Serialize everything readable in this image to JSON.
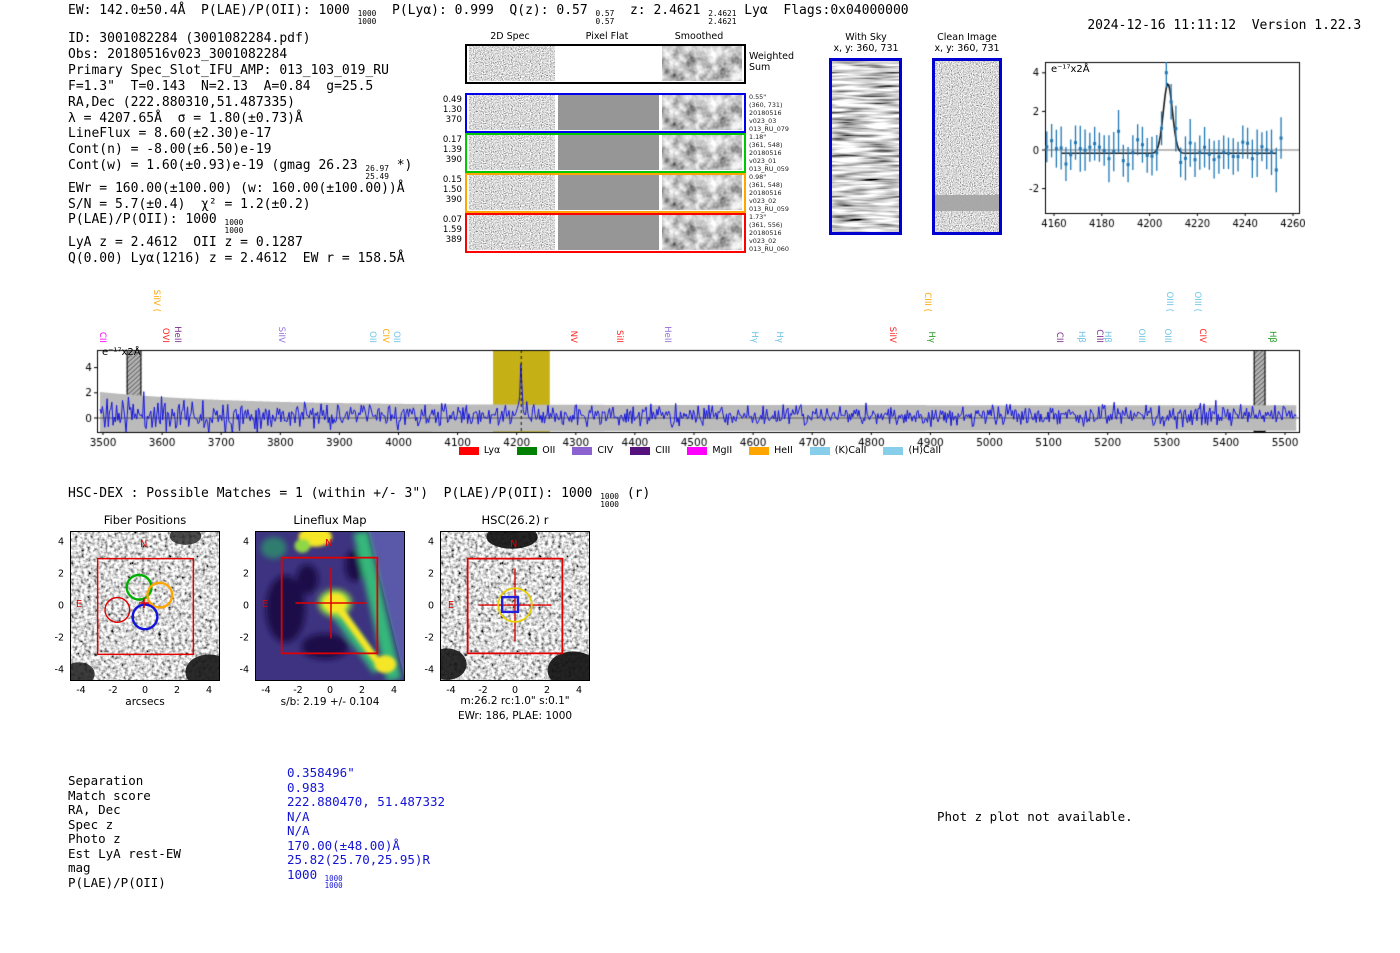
{
  "header": {
    "segments": [
      {
        "t": "EW: 142.0±50.4Å  P(LAE)/P(OII): 1000 "
      },
      {
        "frac": [
          "1000",
          "1000"
        ]
      },
      {
        "t": "  P(Lyα): 0.999  Q(z): 0.57 "
      },
      {
        "frac": [
          "0.57",
          "0.57"
        ]
      },
      {
        "t": "  z: 2.4621 "
      },
      {
        "frac": [
          "2.4621",
          "2.4621"
        ]
      },
      {
        "t": " Lyα  Flags:0x04000000"
      }
    ],
    "timestamp": "2024-12-16 11:11:12",
    "version": "Version 1.22.3"
  },
  "info_block": {
    "lines": [
      [
        {
          "t": "ID: 3001082284 (3001082284.pdf)"
        }
      ],
      [
        {
          "t": "Obs: 20180516v023_3001082284"
        }
      ],
      [
        {
          "t": "Primary Spec_Slot_IFU_AMP: 013_103_019_RU"
        }
      ],
      [
        {
          "t": "F=1.3\"  T=0.143  N=2.13  A=0.84  g=25.5"
        }
      ],
      [
        {
          "t": "RA,Dec (222.880310,51.487335)"
        }
      ],
      [
        {
          "t": "λ = 4207.65Å  σ = 1.80(±0.73)Å"
        }
      ],
      [
        {
          "t": "LineFlux = 8.60(±2.30)e-17"
        }
      ],
      [
        {
          "t": "Cont(n) = -8.00(±6.50)e-19"
        }
      ],
      [
        {
          "t": "Cont(w) = 1.60(±0.93)e-19 (gmag 26.23 "
        },
        {
          "frac": [
            "26.97",
            "25.49"
          ]
        },
        {
          "t": " *)"
        }
      ],
      [
        {
          "t": "EWr = 160.00(±100.00) (w: 160.00(±100.00))Å"
        }
      ],
      [
        {
          "t": "S/N = 5.7(±0.4)  χ² = 1.2(±0.2)"
        }
      ],
      [
        {
          "t": "P(LAE)/P(OII): 1000 "
        },
        {
          "frac": [
            "1000",
            "1000"
          ]
        }
      ],
      [
        {
          "t": "LyA z = 2.4612  OII z = 0.1287"
        }
      ],
      [
        {
          "t": "Q(0.00) Lyα(1216) z = 2.4612  EW r = 158.5Å"
        }
      ]
    ]
  },
  "cutouts_2d": {
    "column_titles": [
      "2D Spec",
      "Pixel Flat",
      "Smoothed"
    ],
    "weighted_sum_label": "Weighted\nSum",
    "rows": [
      {
        "color": "#0000ee",
        "left": [
          "0.49",
          "1.30",
          "370"
        ],
        "right": [
          "0.55\"",
          "(360, 731)",
          "20180516",
          "v023_03",
          "013_RU_079"
        ]
      },
      {
        "color": "#00c800",
        "left": [
          "0.17",
          "1.39",
          "390"
        ],
        "right": [
          "1.18\"",
          "(361, 548)",
          "20180516",
          "v023_01",
          "013_RU_059"
        ]
      },
      {
        "color": "#ffa500",
        "left": [
          "0.15",
          "1.50",
          "390"
        ],
        "right": [
          "0.98\"",
          "(361, 548)",
          "20180516",
          "v023_02",
          "013_RU_059"
        ]
      },
      {
        "color": "#ff0000",
        "left": [
          "0.07",
          "1.59",
          "389"
        ],
        "right": [
          "1.73\"",
          "(361, 556)",
          "20180516",
          "v023_02",
          "013_RU_060"
        ]
      }
    ]
  },
  "sky_panels": [
    {
      "title": "With Sky",
      "subtitle": "x, y: 360, 731"
    },
    {
      "title": "Clean Image",
      "subtitle": "x, y: 360, 731"
    }
  ],
  "chart_data": [
    {
      "id": "line_fit_zoom",
      "type": "scatter",
      "corner_label": "e⁻¹⁷x2Å",
      "x_range": [
        4150,
        4263
      ],
      "xticks": [
        4160,
        4180,
        4200,
        4220,
        4240,
        4260
      ],
      "y_range": [
        -3.26,
        4.56
      ],
      "yticks": [
        -2,
        0,
        2,
        4
      ],
      "gaussian_fit": {
        "center": 4207.65,
        "sigma": 1.9,
        "peak": 3.6,
        "baseline": -0.17,
        "color": "#1c1c1c"
      },
      "marker_color": "#1f77b4",
      "zero_line_color": "#777777",
      "x_step": 2,
      "noise_sigma": 0.75,
      "errorbar": [
        0.75,
        1.25
      ]
    },
    {
      "id": "full_spectrum",
      "type": "line",
      "corner_label": "e⁻¹⁷x2Å",
      "x_range": [
        3495,
        5520
      ],
      "xticks": [
        3500,
        3600,
        3700,
        3800,
        3900,
        4000,
        4100,
        4200,
        4300,
        4400,
        4500,
        4600,
        4700,
        4800,
        4900,
        5000,
        5100,
        5200,
        5300,
        5400,
        5500
      ],
      "yticks": [
        0,
        2,
        4
      ],
      "y_range": [
        -1.15,
        5.45
      ],
      "line_color": "#1414dd",
      "error_band_color": "#bbbbbb",
      "emission_peak": {
        "center": 4207.65,
        "amplitude": 3.4,
        "sigma": 2.2
      },
      "highlight_band": {
        "x0": 4160,
        "x1": 4256,
        "color": "#c2ad09",
        "dashed_line_x": 4207.65
      },
      "hatched_bands": [
        [
          3540,
          3565
        ],
        [
          5447,
          5467
        ]
      ],
      "legend": [
        {
          "label": "Lyα",
          "color": "#ff0000"
        },
        {
          "label": "OII",
          "color": "#008000"
        },
        {
          "label": "CIV",
          "color": "#8c62d1"
        },
        {
          "label": "CIII",
          "color": "#55117c"
        },
        {
          "label": "MgII",
          "color": "#ff00ff"
        },
        {
          "label": "HeII",
          "color": "#ffa500"
        },
        {
          "label": "(K)CaII",
          "color": "#87ceeb"
        },
        {
          "label": "(H)CaII",
          "color": "#87ceeb"
        }
      ],
      "line_labels": [
        {
          "wave": 3500,
          "text": "CII",
          "color": "#ff00ff",
          "tier": 0
        },
        {
          "wave": 3591,
          "text": "SiIV",
          "color": "#ffa500",
          "tier": 1
        },
        {
          "wave": 3607,
          "text": "OVI",
          "color": "#ff2222",
          "tier": 0
        },
        {
          "wave": 3627,
          "text": "HeII",
          "color": "#7b2d8b",
          "tier": 0
        },
        {
          "wave": 3803,
          "text": "SiIV",
          "color": "#9370db",
          "tier": 0
        },
        {
          "wave": 3957,
          "text": "OII",
          "color": "#6fc4e8",
          "tier": 0
        },
        {
          "wave": 3979,
          "text": "CIV",
          "color": "#ffa500",
          "tier": 0
        },
        {
          "wave": 3997,
          "text": "OII",
          "color": "#6fc4e8",
          "tier": 0
        },
        {
          "wave": 4297,
          "text": "NV",
          "color": "#ff2222",
          "tier": 0
        },
        {
          "wave": 4375,
          "text": "SiII",
          "color": "#ff2222",
          "tier": 0
        },
        {
          "wave": 4456,
          "text": "HeII",
          "color": "#9370db",
          "tier": 0
        },
        {
          "wave": 4603,
          "text": "Hγ",
          "color": "#6fc4e8",
          "tier": 0
        },
        {
          "wave": 4646,
          "text": "Hγ",
          "color": "#6fc4e8",
          "tier": 0
        },
        {
          "wave": 4837,
          "text": "SiIV",
          "color": "#ff2222",
          "tier": 0
        },
        {
          "wave": 4896,
          "text": "CIII",
          "color": "#ffa500",
          "tier": 1
        },
        {
          "wave": 4903,
          "text": "Hγ",
          "color": "#2ca02c",
          "tier": 0
        },
        {
          "wave": 5119,
          "text": "CII",
          "color": "#7b2d8b",
          "tier": 0
        },
        {
          "wave": 5157,
          "text": "Hβ",
          "color": "#6fc4e8",
          "tier": 0
        },
        {
          "wave": 5187,
          "text": "CIII",
          "color": "#7b2d8b",
          "tier": 0
        },
        {
          "wave": 5200,
          "text": "Hβ",
          "color": "#6fc4e8",
          "tier": 0
        },
        {
          "wave": 5258,
          "text": "OIII",
          "color": "#6fc4e8",
          "tier": 0
        },
        {
          "wave": 5302,
          "text": "OIII",
          "color": "#6fc4e8",
          "tier": 0
        },
        {
          "wave": 5305,
          "text": "OIII",
          "color": "#6fc4e8",
          "tier": 1
        },
        {
          "wave": 5353,
          "text": "OIII",
          "color": "#6fc4e8",
          "tier": 1
        },
        {
          "wave": 5361,
          "text": "CIV",
          "color": "#ff2222",
          "tier": 0
        },
        {
          "wave": 5480,
          "text": "Hβ",
          "color": "#2ca02c",
          "tier": 0
        }
      ]
    }
  ],
  "hsc_section": {
    "header_segments": [
      {
        "t": "HSC-DEX : Possible Matches = 1 (within +/- 3\")  P(LAE)/P(OII): 1000 "
      },
      {
        "frac": [
          "1000",
          "1000"
        ]
      },
      {
        "t": " (r)"
      }
    ],
    "axis_ticks": [
      -4,
      -2,
      0,
      2,
      4
    ],
    "panels": [
      {
        "title": "Fiber Positions",
        "xlabel": "arcsecs",
        "compass_n": "N",
        "compass_e": "E"
      },
      {
        "title": "Lineflux Map",
        "caption": "s/b: 2.19 +/- 0.104",
        "compass_n": "N",
        "compass_e": "E"
      },
      {
        "title": "HSC(26.2) r",
        "caption1": "m:26.2 rc:1.0\" s:0.1\"",
        "caption2": "EWr: 186, PLAE: 1000",
        "compass_n": "N",
        "compass_e": "E"
      }
    ]
  },
  "match_table": {
    "rows": [
      {
        "label": "Separation",
        "value": [
          {
            "t": "0.358496\""
          }
        ]
      },
      {
        "label": "Match score",
        "value": [
          {
            "t": "0.983"
          }
        ]
      },
      {
        "label": "RA, Dec",
        "value": [
          {
            "t": "222.880470, 51.487332"
          }
        ]
      },
      {
        "label": "Spec z",
        "value": [
          {
            "t": "N/A"
          }
        ]
      },
      {
        "label": "Photo z",
        "value": [
          {
            "t": "N/A"
          }
        ]
      },
      {
        "label": "Est LyA rest-EW",
        "value": [
          {
            "t": "170.00(±48.00)Å"
          }
        ]
      },
      {
        "label": "mag",
        "value": [
          {
            "t": "25.82(25.70,25.95)R"
          }
        ]
      },
      {
        "label": "P(LAE)/P(OII)",
        "value": [
          {
            "t": "1000 "
          },
          {
            "frac": [
              "1000",
              "1000"
            ]
          }
        ]
      }
    ]
  },
  "photz_note": "Phot z plot not available."
}
